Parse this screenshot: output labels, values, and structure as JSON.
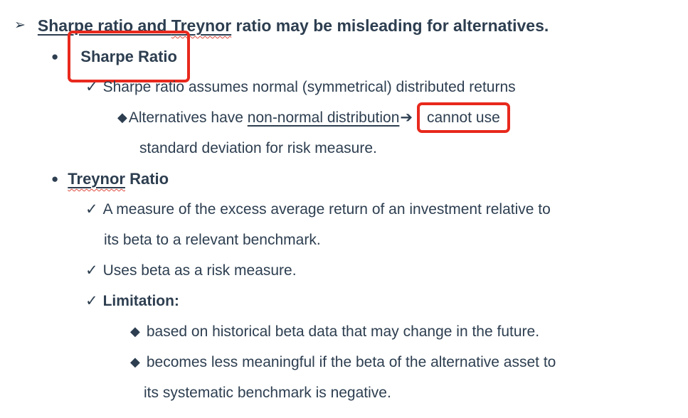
{
  "colors": {
    "text": "#2d3e50",
    "red_box": "#e8291d",
    "squiggle": "#e0483a"
  },
  "bullets": {
    "arrow_bullet": "➢",
    "circle": "●",
    "check": "✓",
    "diamond": "◆",
    "inline_arrow": "➔"
  },
  "heading": {
    "underlined_prefix": "Sharpe ratio and ",
    "misspelled_word": "Treynor",
    "rest": " ratio may be misleading for alternatives."
  },
  "sharpe_section": {
    "title": "Sharpe Ratio",
    "point1": "Sharpe ratio assumes normal (symmetrical) distributed returns",
    "sub_prefix": "Alternatives have ",
    "sub_underlined": "non-normal distribution",
    "sub_boxed": "cannot use",
    "sub_continuation": "standard deviation for risk measure."
  },
  "treynor_section": {
    "title_word": "Treynor",
    "title_rest": " Ratio",
    "point1_line1": "A measure of the excess average return of an investment relative to",
    "point1_line2": "its beta to a relevant benchmark.",
    "point2": "Uses beta as a risk measure.",
    "point3": "Limitation:",
    "sub1": "based on historical beta data that may change in the future.",
    "sub2_line1": "becomes less meaningful if the beta of the alternative asset to",
    "sub2_line2": "its systematic benchmark is negative."
  }
}
